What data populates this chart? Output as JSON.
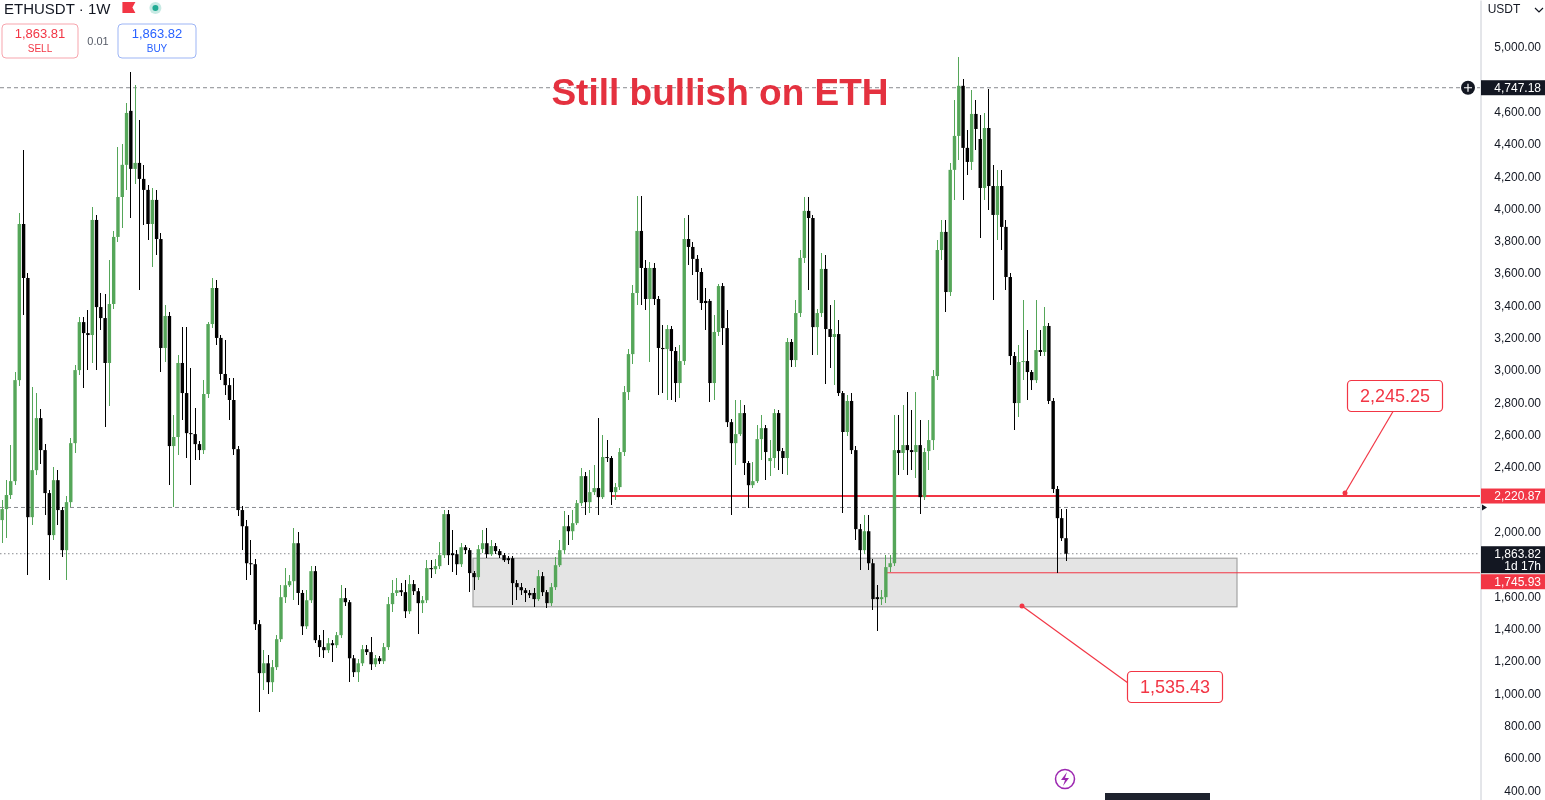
{
  "chart_data": {
    "type": "candlestick",
    "title": "Still bullish on ETH",
    "subtitle": "ETHUSDT · 1W",
    "categories": [
      null,
      null,
      null,
      null,
      null,
      null,
      null,
      null,
      null,
      null,
      null,
      null,
      null,
      null,
      null,
      null,
      null,
      null,
      null,
      null,
      null,
      null,
      null,
      null,
      null,
      null,
      null,
      null,
      null,
      null,
      null,
      null,
      null,
      null,
      null,
      null,
      null,
      null,
      null,
      null,
      null,
      null,
      null,
      null,
      null,
      null,
      null,
      null,
      null,
      null,
      null,
      null,
      null,
      null,
      null,
      null,
      null,
      null,
      null,
      null,
      null,
      null,
      null,
      null,
      null,
      null,
      null,
      null,
      null,
      null,
      null,
      null,
      null,
      null,
      null,
      null,
      null,
      null,
      null,
      null,
      null,
      null,
      null,
      null,
      null,
      null,
      null,
      null,
      null,
      null,
      null,
      null,
      null,
      null,
      null,
      null,
      null,
      null,
      null,
      null,
      null,
      null,
      null,
      null,
      null,
      null,
      null,
      null,
      null,
      null,
      null,
      null,
      null,
      null,
      null,
      null,
      null,
      null,
      null,
      null,
      null,
      null,
      null,
      null,
      null,
      null,
      null,
      null,
      null,
      null,
      null,
      null,
      null,
      null,
      null,
      null,
      null,
      null,
      null,
      null,
      null,
      null,
      null,
      null,
      null,
      null,
      null,
      null,
      null,
      null,
      null,
      null,
      null,
      null,
      null,
      null,
      null,
      null,
      null,
      null,
      null,
      null,
      null,
      null,
      null,
      null,
      null,
      null,
      null,
      null,
      null,
      null,
      null,
      null,
      null,
      null,
      null,
      null,
      null,
      null,
      null,
      null,
      null,
      null,
      null,
      null,
      null,
      null,
      null,
      null,
      null,
      null,
      null,
      null,
      null,
      null,
      null,
      null,
      null,
      null,
      null,
      null,
      null,
      null,
      null,
      null,
      null,
      null,
      null,
      null,
      null,
      null,
      null,
      null,
      null,
      null,
      null,
      null,
      null,
      null,
      null,
      null,
      null,
      null,
      null,
      null,
      null,
      null,
      null,
      null,
      null,
      null,
      null,
      null,
      null,
      null,
      null,
      null,
      null,
      null,
      null,
      null,
      null,
      null,
      null,
      null,
      null,
      null,
      null,
      null,
      null,
      null,
      null,
      null,
      null,
      null,
      null,
      null,
      null,
      null,
      null,
      null,
      null,
      null,
      null,
      null,
      null,
      null,
      null,
      null,
      null,
      null,
      null,
      null,
      null,
      null,
      null,
      null,
      null,
      null,
      null,
      null,
      null,
      null,
      null,
      null,
      null,
      null,
      null,
      null,
      null,
      null,
      null,
      null,
      null,
      null,
      null,
      null,
      null,
      null,
      null,
      null,
      null,
      null,
      null,
      null,
      null,
      null,
      null,
      null,
      null,
      null,
      null,
      null,
      null,
      null,
      null,
      null,
      null,
      null,
      null,
      null,
      null,
      null,
      null,
      null,
      null,
      null,
      null,
      null,
      null,
      null,
      null,
      null,
      null,
      null,
      null,
      null,
      null,
      null,
      null,
      null,
      null,
      null,
      null
    ],
    "ohlc": [
      [
        2072,
        2196,
        1929,
        2140
      ],
      [
        2140,
        2319,
        1960,
        2227
      ],
      [
        2227,
        2536,
        2200,
        2313
      ],
      [
        2313,
        2990,
        2290,
        2938
      ],
      [
        2938,
        3972,
        2900,
        3904
      ],
      [
        3904,
        4362,
        3340,
        3570
      ],
      [
        3570,
        3600,
        1731,
        2090
      ],
      [
        2090,
        2895,
        2040,
        2381
      ],
      [
        2381,
        2860,
        2350,
        2703
      ],
      [
        2703,
        2760,
        2420,
        2505
      ],
      [
        2505,
        2540,
        2103,
        2239
      ],
      [
        2239,
        2260,
        1701,
        1979
      ],
      [
        1979,
        2400,
        1950,
        2319
      ],
      [
        2319,
        2380,
        2041,
        2134
      ],
      [
        2134,
        2150,
        1843,
        1886
      ],
      [
        1886,
        2220,
        1701,
        2183
      ],
      [
        2183,
        2580,
        2150,
        2548
      ],
      [
        2548,
        3030,
        2487,
        3000
      ],
      [
        3000,
        3330,
        2970,
        3297
      ],
      [
        3297,
        3330,
        2890,
        3229
      ],
      [
        3229,
        3372,
        3000,
        3217
      ],
      [
        3217,
        4009,
        3044,
        3929
      ],
      [
        3929,
        3960,
        3000,
        3390
      ],
      [
        3390,
        3477,
        3248,
        3322
      ],
      [
        3322,
        3470,
        2647,
        3044
      ],
      [
        3044,
        3681,
        2780,
        3409
      ],
      [
        3409,
        3860,
        3380,
        3824
      ],
      [
        3824,
        4381,
        3790,
        4071
      ],
      [
        4071,
        4400,
        3880,
        4270
      ],
      [
        4270,
        4653,
        4115,
        4591
      ],
      [
        4604,
        4845,
        3941,
        4245
      ],
      [
        4245,
        4765,
        4150,
        4282
      ],
      [
        4282,
        4548,
        3495,
        4183
      ],
      [
        4183,
        4270,
        3898,
        4115
      ],
      [
        4115,
        4146,
        3805,
        3904
      ],
      [
        3904,
        4127,
        3640,
        4053
      ],
      [
        4053,
        4115,
        3713,
        3811
      ],
      [
        3811,
        3849,
        2988,
        3137
      ],
      [
        3137,
        3403,
        3050,
        3335
      ],
      [
        3335,
        3360,
        2288,
        2530
      ],
      [
        2530,
        2722,
        2152,
        2586
      ],
      [
        2586,
        3093,
        2474,
        3044
      ],
      [
        3044,
        3266,
        2691,
        2858
      ],
      [
        2858,
        3266,
        2456,
        2610
      ],
      [
        2610,
        3013,
        2288,
        2604
      ],
      [
        2604,
        2765,
        2443,
        2542
      ],
      [
        2542,
        2560,
        2443,
        2505
      ],
      [
        2505,
        2938,
        2480,
        2852
      ],
      [
        2852,
        3300,
        2830,
        3285
      ],
      [
        3285,
        3570,
        3260,
        3508
      ],
      [
        3508,
        3557,
        3155,
        3199
      ],
      [
        3199,
        3217,
        2940,
        2976
      ],
      [
        2976,
        3186,
        2846,
        2907
      ],
      [
        2907,
        2951,
        2691,
        2815
      ],
      [
        2815,
        2951,
        2474,
        2511
      ],
      [
        2511,
        2530,
        2096,
        2134
      ],
      [
        2134,
        2160,
        1886,
        2034
      ],
      [
        2034,
        2072,
        1701,
        1805
      ],
      [
        1805,
        1948,
        1731,
        1799
      ],
      [
        1799,
        1830,
        1391,
        1428
      ],
      [
        1428,
        1453,
        883,
        1125
      ],
      [
        1125,
        1267,
        1019,
        1186
      ],
      [
        1186,
        1236,
        995,
        1069
      ],
      [
        1069,
        1205,
        1007,
        1162
      ],
      [
        1162,
        1360,
        1143,
        1335
      ],
      [
        1335,
        1669,
        1320,
        1595
      ],
      [
        1595,
        1775,
        1558,
        1669
      ],
      [
        1669,
        1731,
        1660,
        1694
      ],
      [
        1694,
        2022,
        1576,
        1929
      ],
      [
        1929,
        1997,
        1546,
        1621
      ],
      [
        1621,
        1640,
        1360,
        1415
      ],
      [
        1415,
        1638,
        1400,
        1576
      ],
      [
        1576,
        1787,
        1560,
        1756
      ],
      [
        1756,
        1790,
        1310,
        1329
      ],
      [
        1329,
        1360,
        1223,
        1286
      ],
      [
        1286,
        1391,
        1217,
        1267
      ],
      [
        1267,
        1340,
        1250,
        1310
      ],
      [
        1310,
        1330,
        1193,
        1298
      ],
      [
        1298,
        1380,
        1280,
        1360
      ],
      [
        1360,
        1669,
        1340,
        1589
      ],
      [
        1589,
        1651,
        1540,
        1564
      ],
      [
        1564,
        1580,
        1069,
        1217
      ],
      [
        1217,
        1240,
        1100,
        1131
      ],
      [
        1131,
        1210,
        1069,
        1186
      ],
      [
        1186,
        1298,
        1170,
        1273
      ],
      [
        1273,
        1298,
        1240,
        1255
      ],
      [
        1255,
        1349,
        1143,
        1180
      ],
      [
        1180,
        1240,
        1160,
        1217
      ],
      [
        1217,
        1230,
        1180,
        1199
      ],
      [
        1199,
        1310,
        1180,
        1286
      ],
      [
        1286,
        1595,
        1270,
        1552
      ],
      [
        1552,
        1701,
        1502,
        1621
      ],
      [
        1621,
        1713,
        1600,
        1638
      ],
      [
        1638,
        1680,
        1600,
        1626
      ],
      [
        1626,
        1701,
        1465,
        1508
      ],
      [
        1508,
        1731,
        1490,
        1676
      ],
      [
        1676,
        1700,
        1610,
        1632
      ],
      [
        1632,
        1650,
        1366,
        1558
      ],
      [
        1558,
        1600,
        1500,
        1576
      ],
      [
        1576,
        1824,
        1560,
        1775
      ],
      [
        1775,
        1824,
        1713,
        1768
      ],
      [
        1768,
        1830,
        1740,
        1787
      ],
      [
        1787,
        1936,
        1770,
        1855
      ],
      [
        1855,
        2134,
        1840,
        2109
      ],
      [
        2109,
        2134,
        1793,
        1855
      ],
      [
        1867,
        2010,
        1750,
        1855
      ],
      [
        1861,
        1886,
        1731,
        1799
      ],
      [
        1799,
        1930,
        1780,
        1904
      ],
      [
        1904,
        1920,
        1860,
        1886
      ],
      [
        1886,
        1900,
        1626,
        1744
      ],
      [
        1744,
        1760,
        1638,
        1719
      ],
      [
        1719,
        1920,
        1700,
        1892
      ],
      [
        1892,
        2010,
        1870,
        1929
      ],
      [
        1929,
        2022,
        1840,
        1861
      ],
      [
        1861,
        1948,
        1850,
        1911
      ],
      [
        1911,
        1930,
        1860,
        1880
      ],
      [
        1880,
        1890,
        1840,
        1855
      ],
      [
        1855,
        1870,
        1810,
        1824
      ],
      [
        1836,
        1850,
        1800,
        1824
      ],
      [
        1836,
        1850,
        1546,
        1682
      ],
      [
        1682,
        1700,
        1576,
        1657
      ],
      [
        1657,
        1680,
        1610,
        1638
      ],
      [
        1638,
        1650,
        1564,
        1621
      ],
      [
        1621,
        1640,
        1590,
        1607
      ],
      [
        1621,
        1650,
        1533,
        1583
      ],
      [
        1583,
        1762,
        1570,
        1725
      ],
      [
        1725,
        1750,
        1600,
        1626
      ],
      [
        1626,
        1640,
        1527,
        1558
      ],
      [
        1558,
        1680,
        1540,
        1657
      ],
      [
        1657,
        1843,
        1640,
        1793
      ],
      [
        1793,
        1948,
        1780,
        1886
      ],
      [
        1886,
        2127,
        1860,
        2034
      ],
      [
        2034,
        2103,
        1917,
        2003
      ],
      [
        2003,
        2134,
        1948,
        2053
      ],
      [
        2053,
        2196,
        2040,
        2177
      ],
      [
        2177,
        2394,
        2160,
        2344
      ],
      [
        2344,
        2370,
        2103,
        2183
      ],
      [
        2183,
        2381,
        2115,
        2245
      ],
      [
        2245,
        2412,
        2230,
        2270
      ],
      [
        2270,
        2703,
        2103,
        2214
      ],
      [
        2214,
        2598,
        2200,
        2462
      ],
      [
        2462,
        2567,
        2430,
        2456
      ],
      [
        2456,
        2470,
        2165,
        2245
      ],
      [
        2245,
        2300,
        2196,
        2276
      ],
      [
        2276,
        2520,
        2260,
        2493
      ],
      [
        2493,
        2900,
        2470,
        2864
      ],
      [
        2864,
        3130,
        2815,
        3099
      ],
      [
        3099,
        3526,
        3038,
        3477
      ],
      [
        3477,
        4078,
        3403,
        3861
      ],
      [
        3861,
        4078,
        3403,
        3632
      ],
      [
        3632,
        3681,
        3372,
        3440
      ],
      [
        3440,
        3669,
        3050,
        3632
      ],
      [
        3632,
        3663,
        3403,
        3440
      ],
      [
        3440,
        3460,
        2846,
        3137
      ],
      [
        3137,
        3279,
        2858,
        3130
      ],
      [
        3130,
        3279,
        2815,
        3254
      ],
      [
        3254,
        3270,
        2815,
        3118
      ],
      [
        3118,
        3140,
        2803,
        2920
      ],
      [
        2920,
        3155,
        2827,
        3056
      ],
      [
        3056,
        3941,
        3030,
        3811
      ],
      [
        3811,
        3960,
        3650,
        3762
      ],
      [
        3762,
        3790,
        3589,
        3688
      ],
      [
        3688,
        3710,
        3434,
        3607
      ],
      [
        3607,
        3630,
        3372,
        3415
      ],
      [
        3428,
        3508,
        3248,
        3415
      ],
      [
        3428,
        3440,
        2803,
        2920
      ],
      [
        2920,
        3341,
        2815,
        3236
      ],
      [
        3236,
        3533,
        3210,
        3520
      ],
      [
        3520,
        3539,
        3155,
        3260
      ],
      [
        3260,
        3372,
        2650,
        2678
      ],
      [
        2678,
        2700,
        2103,
        2548
      ],
      [
        2548,
        2815,
        2412,
        2604
      ],
      [
        2604,
        2815,
        2590,
        2734
      ],
      [
        2734,
        2784,
        2350,
        2425
      ],
      [
        2425,
        2440,
        2146,
        2288
      ],
      [
        2288,
        2431,
        2270,
        2313
      ],
      [
        2313,
        2660,
        2300,
        2573
      ],
      [
        2573,
        2722,
        2443,
        2641
      ],
      [
        2641,
        2660,
        2319,
        2493
      ],
      [
        2437,
        2567,
        2344,
        2456
      ],
      [
        2456,
        2760,
        2394,
        2734
      ],
      [
        2734,
        2753,
        2381,
        2499
      ],
      [
        2499,
        2520,
        2356,
        2456
      ],
      [
        2456,
        3200,
        2350,
        3174
      ],
      [
        3174,
        3190,
        3020,
        3062
      ],
      [
        3062,
        3434,
        3019,
        3353
      ],
      [
        3353,
        3743,
        3330,
        3694
      ],
      [
        3694,
        4071,
        3660,
        3985
      ],
      [
        3985,
        4071,
        3495,
        3941
      ],
      [
        3941,
        3960,
        3093,
        3266
      ],
      [
        3266,
        3380,
        3093,
        3353
      ],
      [
        3353,
        3725,
        3330,
        3626
      ],
      [
        3626,
        3713,
        2914,
        3254
      ],
      [
        3254,
        3403,
        3013,
        3205
      ],
      [
        3205,
        3434,
        2907,
        3223
      ],
      [
        3223,
        3310,
        2840,
        2858
      ],
      [
        2858,
        2870,
        2115,
        2617
      ],
      [
        2617,
        2846,
        2590,
        2809
      ],
      [
        2809,
        2858,
        2480,
        2505
      ],
      [
        2505,
        2530,
        1948,
        2016
      ],
      [
        2016,
        2050,
        1762,
        1886
      ],
      [
        1886,
        2103,
        1860,
        2003
      ],
      [
        2003,
        2103,
        1762,
        1805
      ],
      [
        1805,
        1830,
        1514,
        1583
      ],
      [
        1595,
        1669,
        1385,
        1583
      ],
      [
        1583,
        1638,
        1546,
        1595
      ],
      [
        1595,
        1855,
        1558,
        1781
      ],
      [
        1781,
        1855,
        1750,
        1805
      ],
      [
        1805,
        2722,
        1790,
        2505
      ],
      [
        2505,
        2722,
        2350,
        2487
      ],
      [
        2487,
        2784,
        2381,
        2536
      ],
      [
        2536,
        2864,
        2350,
        2505
      ],
      [
        2505,
        2753,
        2381,
        2493
      ],
      [
        2493,
        2864,
        2332,
        2536
      ],
      [
        2536,
        2691,
        2109,
        2214
      ],
      [
        2214,
        2520,
        2196,
        2493
      ],
      [
        2499,
        2691,
        2381,
        2567
      ],
      [
        2567,
        3000,
        2505,
        2963
      ],
      [
        2963,
        3805,
        2940,
        3743
      ],
      [
        3743,
        3929,
        3681,
        3855
      ],
      [
        3855,
        3929,
        3359,
        3483
      ],
      [
        3483,
        4280,
        3460,
        4239
      ],
      [
        4239,
        4672,
        4053,
        4449
      ],
      [
        4449,
        4938,
        4300,
        4759
      ],
      [
        4759,
        4800,
        4053,
        4375
      ],
      [
        4375,
        4486,
        4208,
        4288
      ],
      [
        4288,
        4734,
        4239,
        4585
      ],
      [
        4585,
        4672,
        4362,
        4492
      ],
      [
        4430,
        4579,
        3818,
        4127
      ],
      [
        4127,
        4591,
        4053,
        4498
      ],
      [
        4498,
        4740,
        3991,
        4139
      ],
      [
        4139,
        4270,
        3434,
        3960
      ],
      [
        3960,
        4239,
        3805,
        4139
      ],
      [
        4139,
        4239,
        3743,
        3886
      ],
      [
        3886,
        3929,
        3495,
        3576
      ],
      [
        3576,
        3600,
        3031,
        3087
      ],
      [
        3087,
        3110,
        2629,
        2796
      ],
      [
        2796,
        3155,
        2710,
        3050
      ],
      [
        3050,
        3434,
        2938,
        3056
      ],
      [
        3056,
        3248,
        2815,
        2988
      ],
      [
        2988,
        3000,
        2877,
        2938
      ],
      [
        2938,
        3434,
        2920,
        3124
      ],
      [
        3124,
        3248,
        3090,
        3112
      ],
      [
        3112,
        3390,
        3090,
        3273
      ],
      [
        3273,
        3290,
        2790,
        2809
      ],
      [
        2809,
        2830,
        2240,
        2264
      ],
      [
        2264,
        2280,
        1746,
        2084
      ],
      [
        2084,
        2140,
        1940,
        1960
      ],
      [
        1960,
        2140,
        1818,
        1864
      ],
      null,
      null,
      null,
      null,
      null,
      null,
      null,
      null,
      null,
      null,
      null,
      null,
      null,
      null,
      null,
      null,
      null,
      null,
      null,
      null,
      null,
      null,
      null,
      null,
      null,
      null,
      null,
      null,
      null,
      null,
      null,
      null,
      null,
      null,
      null,
      null,
      null,
      null,
      null,
      null,
      null,
      null,
      null,
      null,
      null,
      null,
      null,
      null,
      null,
      null,
      null,
      null,
      null,
      null,
      null,
      null,
      null,
      null,
      null,
      null,
      null,
      null,
      null,
      null,
      null,
      null,
      null,
      null,
      null,
      null,
      null,
      null,
      null,
      null,
      null,
      null,
      null,
      null,
      null,
      null,
      null,
      null,
      null,
      null,
      null,
      null,
      null,
      null,
      null,
      null,
      null,
      null,
      null,
      null,
      null,
      null
    ],
    "colors": [
      "#55a659",
      "#55a659",
      "#55a659",
      "#55a659",
      "#55a659",
      "#000000",
      "#000000",
      "#55a659",
      "#55a659",
      "#000000",
      "#000000",
      "#000000",
      "#55a659",
      "#000000",
      "#000000",
      "#55a659",
      "#55a659",
      "#55a659",
      "#55a659",
      "#000000",
      "#000000",
      "#55a659",
      "#000000",
      "#000000",
      "#000000",
      "#55a659",
      "#55a659",
      "#55a659",
      "#55a659",
      "#55a659",
      "#000000",
      "#55a659",
      "#000000",
      "#000000",
      "#000000",
      "#55a659",
      "#000000",
      "#000000",
      "#55a659",
      "#000000",
      "#55a659",
      "#55a659",
      "#000000",
      "#000000",
      "#000000",
      "#000000",
      "#000000",
      "#55a659",
      "#55a659",
      "#55a659",
      "#000000",
      "#000000",
      "#000000",
      "#000000",
      "#000000",
      "#000000",
      "#000000",
      "#000000",
      "#000000",
      "#000000",
      "#000000",
      "#55a659",
      "#000000",
      "#55a659",
      "#55a659",
      "#55a659",
      "#55a659",
      "#55a659",
      "#55a659",
      "#000000",
      "#000000",
      "#55a659",
      "#55a659",
      "#000000",
      "#000000",
      "#000000",
      "#55a659",
      "#000000",
      "#55a659",
      "#55a659",
      "#000000",
      "#000000",
      "#000000",
      "#55a659",
      "#55a659",
      "#000000",
      "#000000",
      "#55a659",
      "#000000",
      "#55a659",
      "#55a659",
      "#55a659",
      "#55a659",
      "#000000",
      "#000000",
      "#55a659",
      "#000000",
      "#000000",
      "#55a659",
      "#55a659",
      "#000000",
      "#55a659",
      "#55a659",
      "#55a659",
      "#000000",
      "#000000",
      "#000000",
      "#55a659",
      "#000000",
      "#000000",
      "#000000",
      "#55a659",
      "#55a659",
      "#000000",
      "#55a659",
      "#000000",
      "#000000",
      "#000000",
      "#000000",
      "#000000",
      "#000000",
      "#000000",
      "#000000",
      "#000000",
      "#000000",
      "#55a659",
      "#000000",
      "#000000",
      "#55a659",
      "#55a659",
      "#55a659",
      "#55a659",
      "#000000",
      "#55a659",
      "#55a659",
      "#55a659",
      "#000000",
      "#55a659",
      "#55a659",
      "#000000",
      "#55a659",
      "#000000",
      "#000000",
      "#55a659",
      "#55a659",
      "#55a659",
      "#55a659",
      "#55a659",
      "#55a659",
      "#000000",
      "#000000",
      "#55a659",
      "#000000",
      "#000000",
      "#000000",
      "#55a659",
      "#000000",
      "#000000",
      "#55a659",
      "#55a659",
      "#000000",
      "#000000",
      "#000000",
      "#000000",
      "#000000",
      "#000000",
      "#55a659",
      "#55a659",
      "#000000",
      "#000000",
      "#000000",
      "#55a659",
      "#55a659",
      "#000000",
      "#000000",
      "#55a659",
      "#55a659",
      "#55a659",
      "#000000",
      "#55a659",
      "#55a659",
      "#000000",
      "#000000",
      "#55a659",
      "#000000",
      "#55a659",
      "#55a659",
      "#55a659",
      "#000000",
      "#000000",
      "#55a659",
      "#55a659",
      "#000000",
      "#000000",
      "#55a659",
      "#000000",
      "#000000",
      "#55a659",
      "#000000",
      "#000000",
      "#000000",
      "#55a659",
      "#000000",
      "#000000",
      "#000000",
      "#55a659",
      "#55a659",
      "#55a659",
      "#55a659",
      "#000000",
      "#55a659",
      "#000000",
      "#000000",
      "#55a659",
      "#000000",
      "#55a659",
      "#55a659",
      "#55a659",
      "#55a659",
      "#55a659",
      "#000000",
      "#55a659",
      "#55a659",
      "#55a659",
      "#000000",
      "#000000",
      "#55a659",
      "#000000",
      "#000000",
      "#55a659",
      "#000000",
      "#000000",
      "#55a659",
      "#000000",
      "#000000",
      "#000000",
      "#000000",
      "#55a659",
      "#55a659",
      "#000000",
      "#000000",
      "#55a659",
      "#000000",
      "#55a659",
      "#000000",
      "#000000",
      "#000000",
      "#000000",
      "#000000",
      null,
      null,
      null,
      null,
      null,
      null,
      null,
      null,
      null,
      null,
      null,
      null,
      null,
      null,
      null,
      null,
      null,
      null,
      null,
      null,
      null,
      null,
      null,
      null,
      null,
      null,
      null,
      null,
      null,
      null,
      null,
      null,
      null,
      null,
      null,
      null,
      null,
      null,
      null,
      null,
      null,
      null,
      null,
      null,
      null,
      null,
      null,
      null,
      null,
      null,
      null,
      null,
      null,
      null,
      null,
      null,
      null,
      null,
      null,
      null,
      null,
      null,
      null,
      null,
      null,
      null,
      null,
      null,
      null,
      null,
      null,
      null,
      null,
      null,
      null,
      null,
      null,
      null,
      null,
      null,
      null,
      null,
      null,
      null,
      null,
      null,
      null,
      null,
      null,
      null,
      null,
      null,
      null,
      null,
      null,
      null
    ],
    "ylim": [
      340,
      5290
    ],
    "yticks": [
      {
        "value": 400,
        "label": "400.00"
      },
      {
        "value": 600,
        "label": "600.00"
      },
      {
        "value": 800,
        "label": "800.00"
      },
      {
        "value": 1000,
        "label": "1,000.00"
      },
      {
        "value": 1200,
        "label": "1,200.00"
      },
      {
        "value": 1400,
        "label": "1,400.00"
      },
      {
        "value": 1600,
        "label": "1,600.00"
      },
      {
        "value": 2000,
        "label": "2,000.00"
      },
      {
        "value": 2400,
        "label": "2,400.00"
      },
      {
        "value": 2600,
        "label": "2,600.00"
      },
      {
        "value": 2800,
        "label": "2,800.00"
      },
      {
        "value": 3000,
        "label": "3,000.00"
      },
      {
        "value": 3200,
        "label": "3,200.00"
      },
      {
        "value": 3400,
        "label": "3,400.00"
      },
      {
        "value": 3600,
        "label": "3,600.00"
      },
      {
        "value": 3800,
        "label": "3,800.00"
      },
      {
        "value": 4000,
        "label": "4,000.00"
      },
      {
        "value": 4200,
        "label": "4,200.00"
      },
      {
        "value": 4400,
        "label": "4,400.00"
      },
      {
        "value": 4600,
        "label": "4,600.00"
      },
      {
        "value": 5000,
        "label": "5,000.00"
      }
    ],
    "tick_labels": "y",
    "ref_lines": [
      {
        "axis": "y",
        "value": 4747.18,
        "label": "4,747.18",
        "color": "#131722",
        "line_style": "dashed"
      },
      {
        "axis": "y",
        "value": 2220.87,
        "label": "2,220.87",
        "color": "#f23645",
        "line_style": "solid"
      },
      {
        "axis": "y",
        "value": 1863.82,
        "label": "1,863.82",
        "color": "#131722",
        "line_style": "dotted"
      },
      {
        "axis": "y",
        "value": 1745.93,
        "label": "1,745.93",
        "color": "#f23645",
        "line_style": "solid"
      },
      {
        "axis": "y",
        "value": 2150,
        "color": "#131722",
        "line_style": "dashed"
      }
    ],
    "bands": [
      {
        "axis": "y",
        "from": 1535.43,
        "to": 1836,
        "color": "#e4e4e4"
      }
    ],
    "annotations": [
      "1,863.81",
      "SELL",
      "0.01",
      "1,863.82",
      "BUY",
      "USDT",
      "1d 17h",
      "2,245.25",
      "1,535.43"
    ]
  }
}
